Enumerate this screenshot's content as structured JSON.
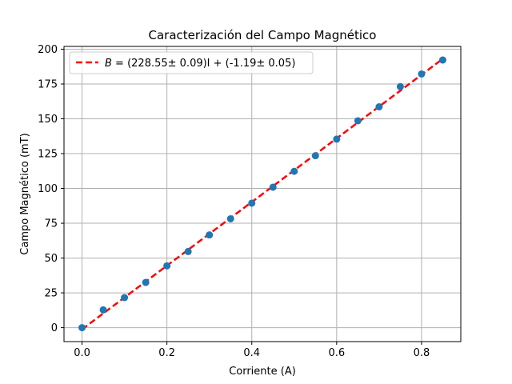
{
  "chart_data": {
    "type": "scatter",
    "title": "Caracterización del Campo Magnético",
    "xlabel": "Corriente (A)",
    "ylabel": "Campo Magnético (mT)",
    "xlim": [
      -0.0425,
      0.8925
    ],
    "ylim": [
      -10.0,
      202.0
    ],
    "grid": true,
    "legend_position": "top-left",
    "x_ticks": [
      0.0,
      0.2,
      0.4,
      0.6,
      0.8
    ],
    "x_tick_labels": [
      "0.0",
      "0.2",
      "0.4",
      "0.6",
      "0.8"
    ],
    "y_ticks": [
      0,
      25,
      50,
      75,
      100,
      125,
      150,
      175,
      200
    ],
    "y_tick_labels": [
      "0",
      "25",
      "50",
      "75",
      "100",
      "125",
      "150",
      "175",
      "200"
    ],
    "series": [
      {
        "kind": "points",
        "color": "#1f77b4",
        "x": [
          0.0,
          0.05,
          0.1,
          0.15,
          0.2,
          0.25,
          0.3,
          0.35,
          0.4,
          0.45,
          0.5,
          0.55,
          0.6,
          0.65,
          0.7,
          0.75,
          0.8,
          0.85
        ],
        "y": [
          0.0,
          12.8,
          21.6,
          32.5,
          44.4,
          54.7,
          66.6,
          78.2,
          89.4,
          100.9,
          112.3,
          123.5,
          135.4,
          148.6,
          158.6,
          173.1,
          182.2,
          192.2
        ]
      },
      {
        "kind": "fit-line",
        "name_prefix": "B",
        "name_suffix": " = (228.55± 0.09)I + (-1.19± 0.05)",
        "color": "#ff0000",
        "slope": 228.55,
        "intercept": -1.19,
        "x_range": [
          0.0,
          0.85
        ]
      }
    ]
  }
}
